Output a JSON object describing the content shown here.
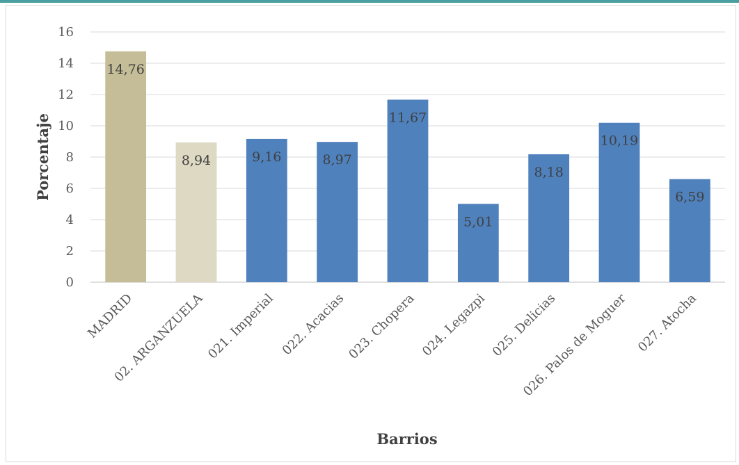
{
  "chart_data": {
    "type": "bar",
    "categories": [
      "MADRID",
      "02. ARGANZUELA",
      "021. Imperial",
      "022. Acacias",
      "023. Chopera",
      "024. Legazpi",
      "025. Delicias",
      "026. Palos de Moguer",
      "027. Atocha"
    ],
    "values": [
      14.76,
      8.94,
      9.16,
      8.97,
      11.67,
      5.01,
      8.18,
      10.19,
      6.59
    ],
    "data_labels": [
      "14,76",
      "8,94",
      "9,16",
      "8,97",
      "11,67",
      "5,01",
      "8,18",
      "10,19",
      "6,59"
    ],
    "bar_colors": [
      "#c4bd97",
      "#ddd9c3",
      "#4f81bd",
      "#4f81bd",
      "#4f81bd",
      "#4f81bd",
      "#4f81bd",
      "#4f81bd",
      "#4f81bd"
    ],
    "title": "",
    "xlabel": "Barrios",
    "ylabel": "Porcentaje",
    "ylim": [
      0,
      16
    ],
    "yticks": [
      0,
      2,
      4,
      6,
      8,
      10,
      12,
      14,
      16
    ],
    "grid": true,
    "legend": "none"
  }
}
